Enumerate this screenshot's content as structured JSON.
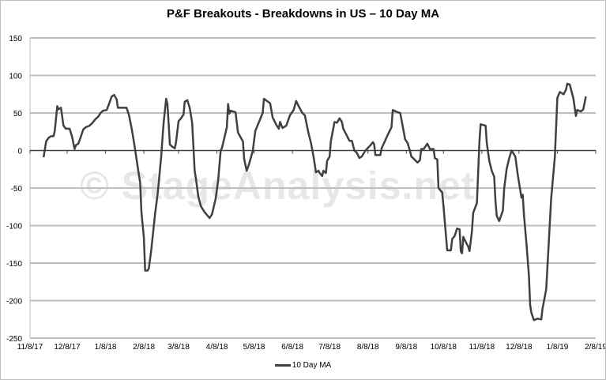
{
  "chart_data": {
    "type": "line",
    "title": "P&F Breakouts - Breakdowns in US – 10 Day MA",
    "watermark": "© StageAnalysis.net",
    "xlabel": "",
    "ylabel": "",
    "xlim": [
      "2017-11-08",
      "2019-02-08"
    ],
    "ylim": [
      -250,
      150
    ],
    "y_ticks": [
      150,
      100,
      50,
      0,
      -50,
      -100,
      -150,
      -200,
      -250
    ],
    "x_tick_labels": [
      "11/8/17",
      "12/8/17",
      "1/8/18",
      "2/8/18",
      "3/8/18",
      "4/8/18",
      "5/8/18",
      "6/8/18",
      "7/8/18",
      "8/8/18",
      "9/8/18",
      "10/8/18",
      "11/8/18",
      "12/8/18",
      "1/8/19",
      "2/8/19"
    ],
    "x_tick_dates": [
      "2017-11-08",
      "2017-12-08",
      "2018-01-08",
      "2018-02-08",
      "2018-03-08",
      "2018-04-08",
      "2018-05-08",
      "2018-06-08",
      "2018-07-08",
      "2018-08-08",
      "2018-09-08",
      "2018-10-08",
      "2018-11-08",
      "2018-12-08",
      "2019-01-08",
      "2019-02-08"
    ],
    "grid": "horizontal",
    "legend": "bottom",
    "colors": {
      "series": "#404040",
      "grid": "#bfbfbf",
      "zero_axis": "#404040"
    },
    "series": [
      {
        "name": "10 Day MA",
        "x": [
          "2017-11-19",
          "2017-11-21",
          "2017-11-23",
          "2017-11-25",
          "2017-11-27",
          "2017-11-28",
          "2017-11-30",
          "2017-12-01",
          "2017-12-03",
          "2017-12-05",
          "2017-12-07",
          "2017-12-10",
          "2017-12-12",
          "2017-12-14",
          "2017-12-15",
          "2017-12-17",
          "2017-12-19",
          "2017-12-21",
          "2017-12-23",
          "2017-12-26",
          "2017-12-28",
          "2017-12-31",
          "2018-01-02",
          "2018-01-04",
          "2018-01-06",
          "2018-01-09",
          "2018-01-11",
          "2018-01-13",
          "2018-01-15",
          "2018-01-17",
          "2018-01-18",
          "2018-01-22",
          "2018-01-25",
          "2018-01-27",
          "2018-01-29",
          "2018-01-30",
          "2018-02-01",
          "2018-02-03",
          "2018-02-05",
          "2018-02-06",
          "2018-02-08",
          "2018-02-09",
          "2018-02-11",
          "2018-02-12",
          "2018-02-14",
          "2018-02-15",
          "2018-02-17",
          "2018-02-19",
          "2018-02-20",
          "2018-02-22",
          "2018-02-23",
          "2018-02-24",
          "2018-02-26",
          "2018-02-27",
          "2018-02-28",
          "2018-03-01",
          "2018-03-03",
          "2018-03-05",
          "2018-03-06",
          "2018-03-08",
          "2018-03-10",
          "2018-03-12",
          "2018-03-13",
          "2018-03-15",
          "2018-03-17",
          "2018-03-19",
          "2018-03-21",
          "2018-03-22",
          "2018-03-24",
          "2018-03-26",
          "2018-03-27",
          "2018-03-29",
          "2018-04-02",
          "2018-04-04",
          "2018-04-07",
          "2018-04-09",
          "2018-04-11",
          "2018-04-12",
          "2018-04-14",
          "2018-04-16",
          "2018-04-17",
          "2018-04-18",
          "2018-04-19",
          "2018-04-23",
          "2018-04-25",
          "2018-04-26",
          "2018-04-29",
          "2018-04-30",
          "2018-05-02",
          "2018-05-04",
          "2018-05-07",
          "2018-05-09",
          "2018-05-12",
          "2018-05-15",
          "2018-05-16",
          "2018-05-21",
          "2018-05-23",
          "2018-05-26",
          "2018-05-28",
          "2018-05-29",
          "2018-05-31",
          "2018-06-03",
          "2018-06-06",
          "2018-06-09",
          "2018-06-11",
          "2018-06-13",
          "2018-06-16",
          "2018-06-18",
          "2018-06-21",
          "2018-06-23",
          "2018-06-25",
          "2018-06-27",
          "2018-06-29",
          "2018-06-30",
          "2018-07-02",
          "2018-07-03",
          "2018-07-05",
          "2018-07-06",
          "2018-07-08",
          "2018-07-09",
          "2018-07-12",
          "2018-07-14",
          "2018-07-16",
          "2018-07-18",
          "2018-07-19",
          "2018-07-21",
          "2018-07-24",
          "2018-07-26",
          "2018-07-28",
          "2018-07-30",
          "2018-08-01",
          "2018-08-03",
          "2018-08-06",
          "2018-08-10",
          "2018-08-12",
          "2018-08-13",
          "2018-08-14",
          "2018-08-18",
          "2018-08-19",
          "2018-08-21",
          "2018-08-24",
          "2018-08-27",
          "2018-08-28",
          "2018-09-01",
          "2018-09-03",
          "2018-09-05",
          "2018-09-07",
          "2018-09-09",
          "2018-09-11",
          "2018-09-12",
          "2018-09-14",
          "2018-09-17",
          "2018-09-19",
          "2018-09-20",
          "2018-09-22",
          "2018-09-25",
          "2018-09-27",
          "2018-09-30",
          "2018-10-01",
          "2018-10-03",
          "2018-10-04",
          "2018-10-07",
          "2018-10-08",
          "2018-10-11",
          "2018-10-14",
          "2018-10-15",
          "2018-10-17",
          "2018-10-19",
          "2018-10-21",
          "2018-10-22",
          "2018-10-23",
          "2018-10-24",
          "2018-10-26",
          "2018-10-28",
          "2018-10-29",
          "2018-10-31",
          "2018-11-01",
          "2018-11-04",
          "2018-11-05",
          "2018-11-06",
          "2018-11-07",
          "2018-11-11",
          "2018-11-12",
          "2018-11-14",
          "2018-11-16",
          "2018-11-18",
          "2018-11-19",
          "2018-11-20",
          "2018-11-22",
          "2018-11-25",
          "2018-11-26",
          "2018-11-28",
          "2018-11-30",
          "2018-12-02",
          "2018-12-05",
          "2018-12-07",
          "2018-12-10",
          "2018-12-11",
          "2018-12-12",
          "2018-12-14",
          "2018-12-16",
          "2018-12-17",
          "2018-12-18",
          "2018-12-20",
          "2018-12-23",
          "2018-12-26",
          "2018-12-27",
          "2018-12-30",
          "2019-01-01",
          "2019-01-03",
          "2019-01-06",
          "2019-01-08",
          "2019-01-10",
          "2019-01-13",
          "2019-01-15",
          "2019-01-16",
          "2019-01-18",
          "2019-01-21",
          "2019-01-23",
          "2019-01-24",
          "2019-01-27",
          "2019-01-29",
          "2019-01-31"
        ],
        "y": [
          -9,
          12,
          17,
          19,
          19,
          26,
          59,
          55,
          57,
          33,
          29,
          29,
          18,
          2,
          7,
          9,
          18,
          28,
          31,
          33,
          36,
          42,
          45,
          50,
          53,
          54,
          63,
          72,
          74,
          68,
          57,
          57,
          57,
          47,
          30,
          21,
          0,
          -22,
          -43,
          -82,
          -116,
          -160,
          -160,
          -157,
          -132,
          -116,
          -85,
          -59,
          -43,
          -7,
          16,
          38,
          69,
          62,
          35,
          8,
          5,
          3,
          12,
          39,
          43,
          48,
          65,
          67,
          57,
          37,
          -27,
          -37,
          -62,
          -74,
          -77,
          -82,
          -90,
          -85,
          -64,
          -40,
          0,
          3,
          17,
          31,
          62,
          49,
          53,
          51,
          24,
          21,
          12,
          -11,
          -27,
          -18,
          0,
          26,
          38,
          50,
          69,
          63,
          44,
          34,
          29,
          38,
          30,
          33,
          47,
          54,
          66,
          59,
          50,
          47,
          23,
          10,
          -8,
          -29,
          -27,
          -30,
          -34,
          -27,
          -30,
          -14,
          -8,
          12,
          38,
          37,
          43,
          38,
          29,
          23,
          13,
          13,
          0,
          -3,
          -10,
          -8,
          0,
          7,
          11,
          8,
          -6,
          -6,
          3,
          10,
          21,
          31,
          54,
          51,
          50,
          33,
          15,
          10,
          -1,
          -8,
          -11,
          -16,
          -13,
          2,
          2,
          9,
          2,
          2,
          -10,
          -12,
          -50,
          -56,
          -74,
          -133,
          -133,
          -118,
          -114,
          -104,
          -105,
          -134,
          -137,
          -115,
          -122,
          -128,
          -134,
          -108,
          -83,
          -70,
          -29,
          10,
          35,
          33,
          10,
          -14,
          -27,
          -35,
          -67,
          -87,
          -94,
          -80,
          -51,
          -25,
          -11,
          0,
          -8,
          -32,
          -63,
          -59,
          -85,
          -124,
          -166,
          -206,
          -216,
          -226,
          -224,
          -225,
          -211,
          -185,
          -124,
          -64,
          -8,
          70,
          78,
          75,
          81,
          89,
          88,
          69,
          46,
          54,
          52,
          55,
          72
        ]
      }
    ]
  }
}
